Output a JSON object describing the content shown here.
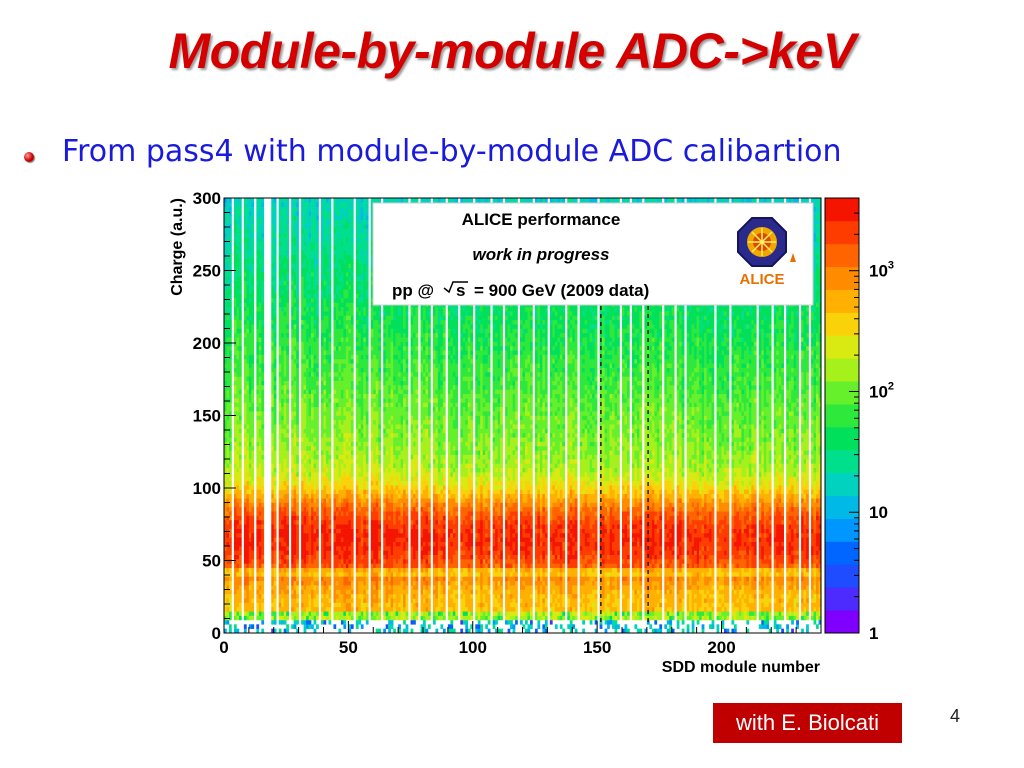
{
  "slide": {
    "title": "Module-by-module ADC->keV",
    "bullet_text": "From pass4 with module-by-module ADC calibartion",
    "credit": "with E. Biolcati",
    "page_number": "4"
  },
  "legend": {
    "line1": "ALICE performance",
    "line2": "work in progress",
    "line3_prefix": "pp @",
    "line3_sqrt": "s",
    "line3_suffix": "= 900 GeV (2009 data)",
    "logo_text": "ALICE"
  },
  "colors": {
    "title": "#d40000",
    "bullet_text": "#1a1adc",
    "credit_bg": "#c00000",
    "palette": [
      "#7f00ff",
      "#4d2bff",
      "#1f4cff",
      "#0066ff",
      "#0096ff",
      "#00b9e6",
      "#00d2bf",
      "#00e08c",
      "#00e05a",
      "#2ee83c",
      "#66f02c",
      "#a6f01c",
      "#d8ea12",
      "#fad20a",
      "#ffb000",
      "#ff8c00",
      "#ff6400",
      "#ff3c00",
      "#f51400"
    ]
  },
  "chart_data": {
    "type": "heatmap",
    "title": "",
    "xlabel": "SDD module number",
    "ylabel": "Charge (a.u.)",
    "xlim": [
      0,
      240
    ],
    "ylim": [
      0,
      300
    ],
    "x_ticks": [
      0,
      50,
      100,
      150,
      200
    ],
    "y_ticks": [
      0,
      50,
      100,
      150,
      200,
      250,
      300
    ],
    "z_scale": "log",
    "z_range": [
      1,
      4000
    ],
    "z_ticks": [
      {
        "value": 1,
        "base": "1",
        "exp": ""
      },
      {
        "value": 10,
        "base": "10",
        "exp": ""
      },
      {
        "value": 100,
        "base": "10",
        "exp": "2"
      },
      {
        "value": 1000,
        "base": "10",
        "exp": "3"
      }
    ],
    "peak_charge": 65,
    "empty_modules": [
      3,
      7,
      12,
      16,
      17,
      18,
      21,
      26,
      30,
      38,
      43,
      52,
      58,
      63,
      74,
      78,
      83,
      89,
      94,
      100,
      107,
      112,
      118,
      124,
      130,
      137,
      142,
      150,
      159,
      163,
      168,
      176,
      181,
      185,
      197,
      203,
      214,
      220,
      225,
      231,
      235
    ],
    "dashed_modules": [
      151,
      170
    ]
  }
}
